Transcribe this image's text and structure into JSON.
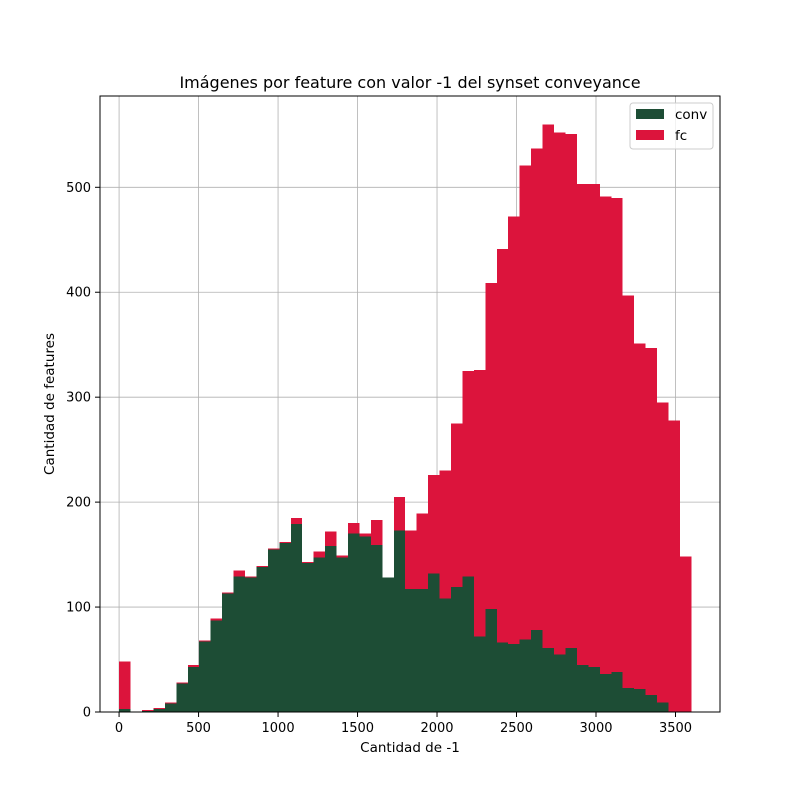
{
  "chart_data": {
    "type": "bar",
    "title": "Imágenes por feature con valor -1 del synset conveyance",
    "xlabel": "Cantidad de -1",
    "ylabel": "Cantidad de features",
    "xlim": [
      -120,
      3780
    ],
    "ylim": [
      0,
      587
    ],
    "xticks": [
      0,
      500,
      1000,
      1500,
      2000,
      2500,
      3000,
      3500
    ],
    "yticks": [
      0,
      100,
      200,
      300,
      400,
      500
    ],
    "grid": true,
    "legend_position": "top-right",
    "bin_width": 72,
    "bin_start": 0,
    "stacked": true,
    "series": [
      {
        "name": "conv",
        "color": "#1d4d35",
        "values": [
          3,
          0,
          1,
          3,
          8,
          27,
          43,
          67,
          87,
          113,
          129,
          128,
          138,
          155,
          161,
          179,
          142,
          147,
          158,
          147,
          170,
          167,
          159,
          128,
          173,
          117,
          117,
          132,
          108,
          119,
          129,
          72,
          98,
          66,
          65,
          69,
          78,
          61,
          55,
          61,
          45,
          43,
          36,
          38,
          23,
          22,
          16,
          9,
          0,
          0
        ]
      },
      {
        "name": "fc",
        "color": "#dc143c",
        "values": [
          45,
          0,
          1,
          1,
          1,
          1,
          2,
          1,
          2,
          1,
          6,
          1,
          1,
          1,
          1,
          6,
          1,
          6,
          14,
          2,
          10,
          3,
          24,
          0,
          32,
          56,
          72,
          94,
          122,
          156,
          196,
          254,
          311,
          375,
          407,
          452,
          459,
          499,
          497,
          490,
          458,
          460,
          455,
          452,
          374,
          329,
          331,
          286,
          278,
          148
        ]
      }
    ]
  }
}
